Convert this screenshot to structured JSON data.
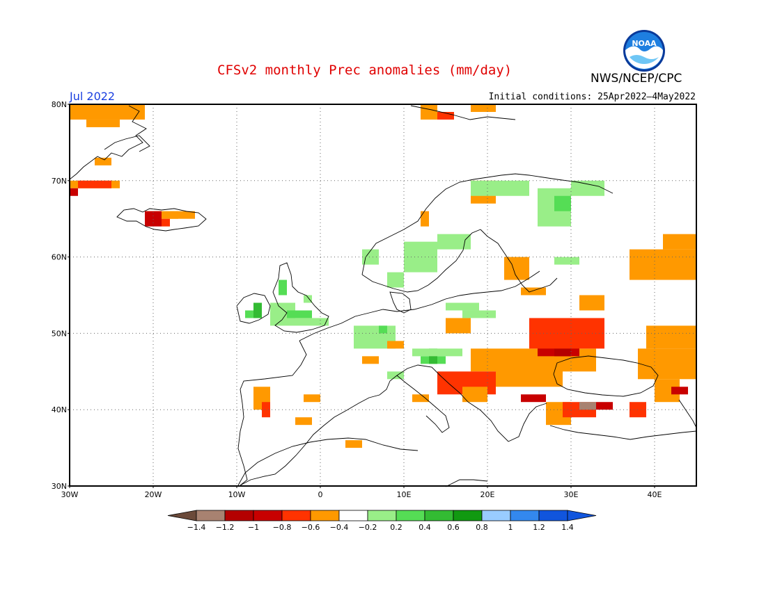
{
  "header": {
    "title": "CFSv2 monthly Prec anomalies (mm/day)",
    "agency": "NWS/NCEP/CPC",
    "month": "Jul 2022",
    "initial_conditions": "Initial conditions: 25Apr2022–4May2022",
    "logo_text": "NOAA"
  },
  "map": {
    "lon_range": [
      -30,
      45
    ],
    "lat_range": [
      30,
      80
    ],
    "lat_labels": [
      "30N",
      "40N",
      "50N",
      "60N",
      "70N",
      "80N"
    ],
    "lon_labels": [
      "30W",
      "20W",
      "10W",
      "0",
      "10E",
      "20E",
      "30E",
      "40E"
    ],
    "grid": "dotted"
  },
  "colorbar": {
    "labels": [
      "-1.4",
      "-1.2",
      "-1",
      "-0.8",
      "-0.6",
      "-0.4",
      "-0.2",
      "0.2",
      "0.4",
      "0.6",
      "0.8",
      "1",
      "1.2",
      "1.4"
    ],
    "colors": [
      "#6b4a3a",
      "#a88271",
      "#b40000",
      "#c80000",
      "#ff3300",
      "#ff9900",
      "#ffffff",
      "#99ee88",
      "#55dd55",
      "#33bb33",
      "#119911",
      "#99ccff",
      "#3388ee",
      "#1155dd"
    ],
    "low_arrow_color": "#6b4a3a",
    "high_arrow_color": "#1155dd"
  },
  "anomalies": [
    {
      "lon": [
        -30,
        -21
      ],
      "lat": [
        78,
        80
      ],
      "value": -0.4
    },
    {
      "lon": [
        -28,
        -24
      ],
      "lat": [
        77,
        78
      ],
      "value": -0.4
    },
    {
      "lon": [
        -27,
        -25
      ],
      "lat": [
        72,
        73
      ],
      "value": -0.4
    },
    {
      "lon": [
        -30,
        -24
      ],
      "lat": [
        69,
        70
      ],
      "value": -0.4
    },
    {
      "lon": [
        -29,
        -25
      ],
      "lat": [
        69,
        70
      ],
      "value": -0.6
    },
    {
      "lon": [
        -30,
        -29
      ],
      "lat": [
        68,
        69
      ],
      "value": -0.8
    },
    {
      "lon": [
        -21,
        -17
      ],
      "lat": [
        65,
        66
      ],
      "value": -0.4
    },
    {
      "lon": [
        -21,
        -19
      ],
      "lat": [
        64,
        66
      ],
      "value": -0.8
    },
    {
      "lon": [
        -19,
        -18
      ],
      "lat": [
        64,
        65
      ],
      "value": -0.6
    },
    {
      "lon": [
        -18,
        -15
      ],
      "lat": [
        65,
        66
      ],
      "value": -0.4
    },
    {
      "lon": [
        -9,
        -7
      ],
      "lat": [
        52,
        53
      ],
      "value": 0.4
    },
    {
      "lon": [
        -8,
        -7
      ],
      "lat": [
        52,
        54
      ],
      "value": 0.6
    },
    {
      "lon": [
        -6,
        -3
      ],
      "lat": [
        51,
        54
      ],
      "value": 0.2
    },
    {
      "lon": [
        -4,
        -1
      ],
      "lat": [
        52,
        53
      ],
      "value": 0.4
    },
    {
      "lon": [
        -3,
        1
      ],
      "lat": [
        51,
        52
      ],
      "value": 0.2
    },
    {
      "lon": [
        -5,
        -4
      ],
      "lat": [
        55,
        57
      ],
      "value": 0.4
    },
    {
      "lon": [
        -2,
        -1
      ],
      "lat": [
        54,
        55
      ],
      "value": 0.2
    },
    {
      "lon": [
        4,
        9
      ],
      "lat": [
        48,
        51
      ],
      "value": 0.2
    },
    {
      "lon": [
        7,
        8
      ],
      "lat": [
        50,
        51
      ],
      "value": 0.4
    },
    {
      "lon": [
        12,
        15
      ],
      "lat": [
        46,
        47
      ],
      "value": 0.4
    },
    {
      "lon": [
        13,
        14
      ],
      "lat": [
        46,
        48
      ],
      "value": 0.6
    },
    {
      "lon": [
        11,
        17
      ],
      "lat": [
        47,
        48
      ],
      "value": 0.2
    },
    {
      "lon": [
        8,
        10
      ],
      "lat": [
        48,
        49
      ],
      "value": -0.4
    },
    {
      "lon": [
        5,
        7
      ],
      "lat": [
        46,
        47
      ],
      "value": -0.4
    },
    {
      "lon": [
        8,
        10
      ],
      "lat": [
        44,
        45
      ],
      "value": 0.2
    },
    {
      "lon": [
        -2,
        0
      ],
      "lat": [
        41,
        42
      ],
      "value": -0.4
    },
    {
      "lon": [
        -8,
        -6
      ],
      "lat": [
        40,
        43
      ],
      "value": -0.4
    },
    {
      "lon": [
        -7,
        -6
      ],
      "lat": [
        39,
        41
      ],
      "value": -0.6
    },
    {
      "lon": [
        -3,
        -1
      ],
      "lat": [
        38,
        39
      ],
      "value": -0.4
    },
    {
      "lon": [
        3,
        5
      ],
      "lat": [
        35,
        36
      ],
      "value": -0.4
    },
    {
      "lon": [
        11,
        13
      ],
      "lat": [
        41,
        42
      ],
      "value": -0.4
    },
    {
      "lon": [
        22,
        25
      ],
      "lat": [
        57,
        60
      ],
      "value": -0.4
    },
    {
      "lon": [
        24,
        27
      ],
      "lat": [
        55,
        56
      ],
      "value": -0.4
    },
    {
      "lon": [
        15,
        18
      ],
      "lat": [
        50,
        52
      ],
      "value": -0.4
    },
    {
      "lon": [
        18,
        33
      ],
      "lat": [
        45,
        48
      ],
      "value": -0.4
    },
    {
      "lon": [
        26,
        31
      ],
      "lat": [
        47,
        50
      ],
      "value": -0.8
    },
    {
      "lon": [
        28,
        30
      ],
      "lat": [
        47,
        49
      ],
      "value": -1
    },
    {
      "lon": [
        25,
        34
      ],
      "lat": [
        48,
        52
      ],
      "value": -0.6
    },
    {
      "lon": [
        31,
        34
      ],
      "lat": [
        53,
        55
      ],
      "value": -0.4
    },
    {
      "lon": [
        21,
        29
      ],
      "lat": [
        43,
        46
      ],
      "value": -0.4
    },
    {
      "lon": [
        14,
        21
      ],
      "lat": [
        42,
        45
      ],
      "value": -0.6
    },
    {
      "lon": [
        17,
        20
      ],
      "lat": [
        41,
        43
      ],
      "value": -0.4
    },
    {
      "lon": [
        24,
        27
      ],
      "lat": [
        41,
        42
      ],
      "value": -0.8
    },
    {
      "lon": [
        27,
        30
      ],
      "lat": [
        38,
        41
      ],
      "value": -0.4
    },
    {
      "lon": [
        29,
        33
      ],
      "lat": [
        39,
        41
      ],
      "value": -0.6
    },
    {
      "lon": [
        31,
        33
      ],
      "lat": [
        40,
        41
      ],
      "value": -1.2
    },
    {
      "lon": [
        33,
        35
      ],
      "lat": [
        40,
        41
      ],
      "value": -0.8
    },
    {
      "lon": [
        37,
        39
      ],
      "lat": [
        39,
        41
      ],
      "value": -0.6
    },
    {
      "lon": [
        40,
        43
      ],
      "lat": [
        41,
        44
      ],
      "value": -0.4
    },
    {
      "lon": [
        42,
        44
      ],
      "lat": [
        42,
        43
      ],
      "value": -0.8
    },
    {
      "lon": [
        38,
        45
      ],
      "lat": [
        44,
        48
      ],
      "value": -0.4
    },
    {
      "lon": [
        39,
        45
      ],
      "lat": [
        48,
        51
      ],
      "value": -0.4
    },
    {
      "lon": [
        37,
        45
      ],
      "lat": [
        57,
        61
      ],
      "value": -0.4
    },
    {
      "lon": [
        41,
        45
      ],
      "lat": [
        61,
        63
      ],
      "value": -0.4
    },
    {
      "lon": [
        12,
        14
      ],
      "lat": [
        78,
        80
      ],
      "value": -0.4
    },
    {
      "lon": [
        14,
        16
      ],
      "lat": [
        78,
        79
      ],
      "value": -0.6
    },
    {
      "lon": [
        18,
        21
      ],
      "lat": [
        79,
        80
      ],
      "value": -0.4
    },
    {
      "lon": [
        18,
        21
      ],
      "lat": [
        67,
        70
      ],
      "value": -0.4
    },
    {
      "lon": [
        12,
        13
      ],
      "lat": [
        64,
        66
      ],
      "value": -0.4
    },
    {
      "lon": [
        5,
        7
      ],
      "lat": [
        59,
        61
      ],
      "value": 0.2
    },
    {
      "lon": [
        8,
        10
      ],
      "lat": [
        56,
        58
      ],
      "value": 0.2
    },
    {
      "lon": [
        10,
        14
      ],
      "lat": [
        58,
        62
      ],
      "value": 0.2
    },
    {
      "lon": [
        14,
        18
      ],
      "lat": [
        61,
        63
      ],
      "value": 0.2
    },
    {
      "lon": [
        18,
        25
      ],
      "lat": [
        68,
        70
      ],
      "value": 0.2
    },
    {
      "lon": [
        26,
        30
      ],
      "lat": [
        64,
        69
      ],
      "value": 0.2
    },
    {
      "lon": [
        28,
        30
      ],
      "lat": [
        66,
        68
      ],
      "value": 0.4
    },
    {
      "lon": [
        30,
        34
      ],
      "lat": [
        68,
        70
      ],
      "value": 0.2
    },
    {
      "lon": [
        28,
        31
      ],
      "lat": [
        59,
        60
      ],
      "value": 0.2
    },
    {
      "lon": [
        15,
        19
      ],
      "lat": [
        53,
        54
      ],
      "value": 0.2
    },
    {
      "lon": [
        17,
        21
      ],
      "lat": [
        52,
        53
      ],
      "value": 0.2
    }
  ]
}
